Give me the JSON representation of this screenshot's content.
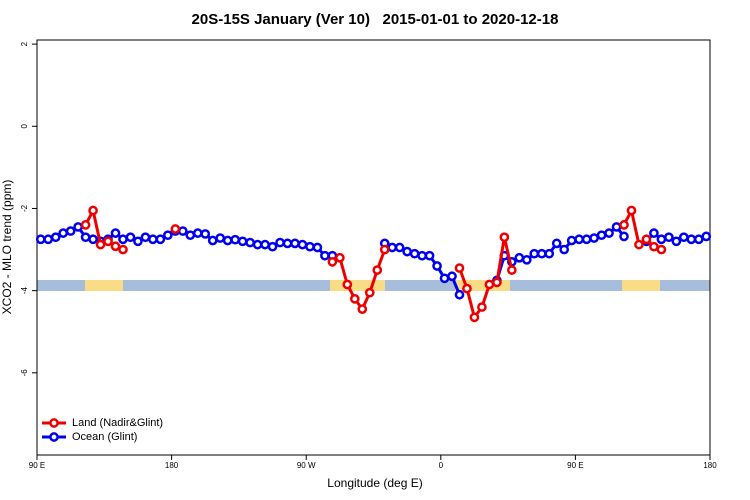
{
  "chart_data": {
    "type": "line",
    "title": "20S-15S January (Ver 10)   2015-01-01 to 2020-12-18",
    "x_label": "Longitude (deg E)",
    "y_label": "XCO2 - MLO trend (ppm)",
    "xlim": [
      90,
      540
    ],
    "ylim": [
      -8,
      2.1
    ],
    "xticks": [
      {
        "value": 90,
        "label": "90 E"
      },
      180,
      {
        "value": 270,
        "label": "90 W"
      },
      {
        "value": 360,
        "label": "0"
      },
      {
        "value": 450,
        "label": "90 E"
      },
      {
        "value": 540,
        "label": "180"
      }
    ],
    "yticks": [
      2,
      0,
      -2,
      -4,
      -6
    ],
    "legend": "bottom-left",
    "x": [
      92.5,
      97.5,
      102.5,
      107.5,
      112.5,
      117.5,
      122.5,
      127.5,
      132.5,
      137.5,
      142.5,
      147.5,
      152.5,
      157.5,
      162.5,
      167.5,
      172.5,
      177.5,
      182.5,
      187.5,
      192.5,
      197.5,
      202.5,
      207.5,
      212.5,
      217.5,
      222.5,
      227.5,
      232.5,
      237.5,
      242.5,
      247.5,
      252.5,
      257.5,
      262.5,
      267.5,
      272.5,
      277.5,
      282.5,
      287.5,
      292.5,
      297.5,
      302.5,
      307.5,
      312.5,
      317.5,
      322.5,
      327.5,
      332.5,
      337.5,
      342.5,
      347.5,
      352.5,
      357.5,
      362.5,
      367.5,
      372.5,
      377.5,
      382.5,
      387.5,
      392.5,
      397.5,
      402.5,
      407.5,
      412.5,
      417.5,
      422.5,
      427.5,
      432.5,
      437.5,
      442.5,
      447.5,
      452.5,
      457.5,
      462.5,
      467.5,
      472.5,
      477.5,
      482.5,
      487.5,
      492.5,
      497.5,
      502.5,
      507.5,
      512.5,
      517.5,
      522.5,
      527.5,
      532.5,
      537.5
    ],
    "series": [
      {
        "name": "Ocean (Glint)",
        "color": "#0000ee",
        "values": [
          -2.75,
          -2.75,
          -2.7,
          -2.6,
          -2.55,
          -2.45,
          -2.7,
          -2.75,
          -2.8,
          -2.75,
          -2.6,
          -2.75,
          -2.7,
          -2.8,
          -2.7,
          -2.75,
          -2.75,
          -2.65,
          -2.55,
          -2.55,
          -2.65,
          -2.6,
          -2.62,
          -2.78,
          -2.72,
          -2.78,
          -2.76,
          -2.8,
          -2.83,
          -2.88,
          -2.88,
          -2.93,
          -2.83,
          -2.85,
          -2.85,
          -2.88,
          -2.93,
          -2.95,
          -3.15,
          -3.15,
          null,
          null,
          null,
          null,
          null,
          null,
          -2.85,
          -2.95,
          -2.95,
          -3.05,
          -3.1,
          -3.15,
          -3.15,
          -3.4,
          -3.7,
          -3.65,
          -4.1,
          null,
          null,
          null,
          null,
          -3.75,
          -3.15,
          -3.3,
          -3.2,
          -3.25,
          -3.1,
          -3.1,
          -3.1,
          -2.85,
          -3.0,
          -2.78,
          -2.75,
          -2.75,
          -2.72,
          -2.65,
          -2.6,
          -2.45,
          -2.68,
          null,
          null,
          -2.8,
          -2.6,
          -2.75,
          -2.7,
          -2.8,
          -2.7,
          -2.75,
          -2.75,
          -2.68
        ]
      },
      {
        "name": "Land (Nadir&Glint)",
        "color": "#ee0000",
        "values": [
          null,
          null,
          null,
          null,
          null,
          null,
          -2.4,
          -2.05,
          -2.88,
          -2.8,
          -2.92,
          -3.0,
          null,
          null,
          null,
          null,
          null,
          null,
          -2.5,
          null,
          null,
          null,
          null,
          null,
          null,
          null,
          null,
          null,
          null,
          null,
          null,
          null,
          null,
          null,
          null,
          null,
          null,
          null,
          null,
          -3.3,
          -3.2,
          -3.85,
          -4.2,
          -4.45,
          -4.05,
          -3.5,
          -3.0,
          null,
          null,
          null,
          null,
          null,
          null,
          null,
          null,
          null,
          -3.45,
          -3.95,
          -4.65,
          -4.4,
          -3.85,
          -3.8,
          -2.7,
          -3.5,
          null,
          null,
          null,
          null,
          null,
          null,
          null,
          null,
          null,
          null,
          null,
          null,
          null,
          null,
          -2.4,
          -2.05,
          -2.88,
          -2.75,
          -2.93,
          -3.0,
          null,
          null,
          null,
          null,
          null,
          null
        ]
      }
    ]
  }
}
